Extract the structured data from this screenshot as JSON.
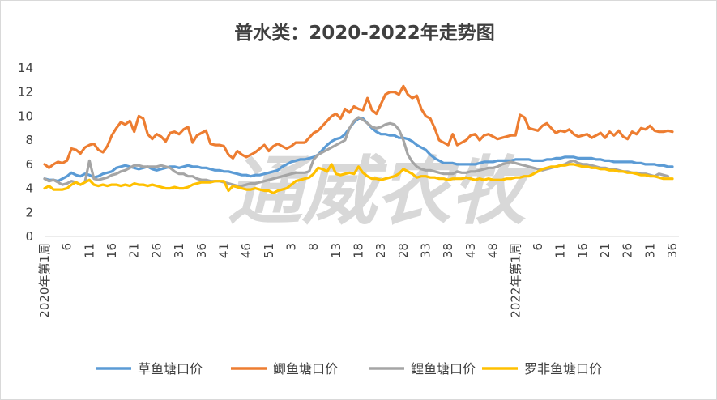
{
  "chart_data": {
    "type": "line",
    "title": "普水类：2020-2022年走势图",
    "watermark": "通威农牧",
    "xlabel": "",
    "ylabel": "",
    "ylim": [
      0,
      14
    ],
    "yticks": [
      "0",
      "2",
      "4",
      "6",
      "8",
      "10",
      "12",
      "14"
    ],
    "x_count": 141,
    "xtick_labels": [
      {
        "index": 0,
        "label": "2020年第1周"
      },
      {
        "index": 5,
        "label": "6"
      },
      {
        "index": 10,
        "label": "11"
      },
      {
        "index": 15,
        "label": "16"
      },
      {
        "index": 20,
        "label": "21"
      },
      {
        "index": 25,
        "label": "26"
      },
      {
        "index": 30,
        "label": "31"
      },
      {
        "index": 35,
        "label": "36"
      },
      {
        "index": 40,
        "label": "41"
      },
      {
        "index": 45,
        "label": "46"
      },
      {
        "index": 50,
        "label": "51"
      },
      {
        "index": 55,
        "label": "3"
      },
      {
        "index": 60,
        "label": "8"
      },
      {
        "index": 65,
        "label": "13"
      },
      {
        "index": 70,
        "label": "18"
      },
      {
        "index": 75,
        "label": "23"
      },
      {
        "index": 80,
        "label": "28"
      },
      {
        "index": 85,
        "label": "33"
      },
      {
        "index": 90,
        "label": "38"
      },
      {
        "index": 95,
        "label": "43"
      },
      {
        "index": 100,
        "label": "48"
      },
      {
        "index": 105,
        "label": "2022年第1周"
      },
      {
        "index": 110,
        "label": "6"
      },
      {
        "index": 115,
        "label": "11"
      },
      {
        "index": 120,
        "label": "16"
      },
      {
        "index": 125,
        "label": "21"
      },
      {
        "index": 130,
        "label": "26"
      },
      {
        "index": 135,
        "label": "31"
      },
      {
        "index": 140,
        "label": "36"
      }
    ],
    "legend_position": "bottom",
    "grid": false,
    "series": [
      {
        "name": "草鱼塘口价",
        "color": "#5b9bd5",
        "values": [
          4.8,
          4.7,
          4.7,
          4.6,
          4.8,
          5.0,
          5.3,
          5.1,
          5.0,
          5.2,
          5.1,
          4.9,
          5.0,
          5.2,
          5.3,
          5.4,
          5.7,
          5.8,
          5.9,
          5.8,
          5.7,
          5.6,
          5.7,
          5.8,
          5.6,
          5.5,
          5.6,
          5.7,
          5.8,
          5.8,
          5.7,
          5.8,
          5.9,
          5.8,
          5.8,
          5.7,
          5.7,
          5.6,
          5.5,
          5.5,
          5.4,
          5.4,
          5.3,
          5.2,
          5.1,
          5.1,
          5.0,
          5.1,
          5.1,
          5.2,
          5.3,
          5.4,
          5.5,
          5.8,
          6.0,
          6.2,
          6.3,
          6.4,
          6.4,
          6.5,
          6.6,
          6.8,
          7.2,
          7.6,
          7.9,
          8.1,
          8.2,
          8.5,
          9.0,
          9.5,
          9.8,
          9.8,
          9.4,
          9.0,
          8.7,
          8.5,
          8.5,
          8.4,
          8.4,
          8.2,
          8.2,
          8.1,
          7.9,
          7.6,
          7.4,
          7.2,
          6.8,
          6.5,
          6.3,
          6.1,
          6.1,
          6.1,
          6.0,
          6.0,
          6.0,
          6.0,
          6.0,
          6.1,
          6.2,
          6.2,
          6.2,
          6.3,
          6.3,
          6.3,
          6.3,
          6.4,
          6.4,
          6.4,
          6.4,
          6.3,
          6.3,
          6.3,
          6.4,
          6.4,
          6.5,
          6.5,
          6.6,
          6.6,
          6.6,
          6.5,
          6.5,
          6.5,
          6.5,
          6.4,
          6.4,
          6.3,
          6.3,
          6.2,
          6.2,
          6.2,
          6.2,
          6.2,
          6.1,
          6.1,
          6.0,
          6.0,
          6.0,
          5.9,
          5.9,
          5.8,
          5.8
        ]
      },
      {
        "name": "鲫鱼塘口价",
        "color": "#ed7d31",
        "values": [
          6.0,
          5.7,
          6.0,
          6.2,
          6.1,
          6.3,
          7.3,
          7.2,
          6.9,
          7.4,
          7.6,
          7.7,
          7.2,
          7.0,
          7.5,
          8.4,
          9.0,
          9.5,
          9.3,
          9.6,
          8.7,
          10.0,
          9.8,
          8.5,
          8.1,
          8.5,
          8.3,
          7.9,
          8.6,
          8.7,
          8.5,
          8.9,
          9.1,
          7.8,
          8.4,
          8.6,
          8.8,
          7.7,
          7.6,
          7.6,
          7.5,
          6.8,
          6.5,
          7.1,
          6.8,
          6.6,
          6.8,
          7.0,
          7.3,
          7.6,
          7.1,
          7.5,
          7.7,
          7.5,
          7.3,
          7.5,
          7.8,
          7.8,
          7.8,
          8.2,
          8.6,
          8.8,
          9.2,
          9.6,
          10.0,
          10.2,
          9.8,
          10.6,
          10.3,
          10.8,
          10.6,
          10.5,
          11.5,
          10.5,
          10.2,
          11.0,
          11.8,
          12.0,
          12.0,
          11.8,
          12.5,
          11.8,
          11.5,
          11.7,
          10.6,
          10.0,
          9.8,
          9.0,
          8.0,
          7.8,
          7.6,
          8.5,
          7.6,
          7.8,
          8.0,
          8.4,
          8.5,
          8.0,
          8.4,
          8.5,
          8.3,
          8.1,
          8.2,
          8.3,
          8.4,
          8.4,
          10.1,
          9.9,
          9.0,
          8.9,
          8.8,
          9.2,
          9.4,
          9.0,
          8.6,
          8.8,
          8.7,
          8.9,
          8.5,
          8.3,
          8.4,
          8.5,
          8.2,
          8.4,
          8.6,
          8.2,
          8.7,
          8.4,
          8.8,
          8.3,
          8.1,
          8.7,
          8.5,
          9.0,
          8.9,
          9.2,
          8.8,
          8.7,
          8.7,
          8.8,
          8.7
        ]
      },
      {
        "name": "鲤鱼塘口价",
        "color": "#a5a5a5",
        "values": [
          4.8,
          4.6,
          4.7,
          4.5,
          4.3,
          4.4,
          4.6,
          4.5,
          4.3,
          4.5,
          6.3,
          4.8,
          4.7,
          4.8,
          4.9,
          5.1,
          5.2,
          5.4,
          5.5,
          5.7,
          5.9,
          5.9,
          5.8,
          5.8,
          5.8,
          5.8,
          5.9,
          5.8,
          5.7,
          5.4,
          5.2,
          5.2,
          5.0,
          5.0,
          4.8,
          4.7,
          4.7,
          4.6,
          4.6,
          4.6,
          4.5,
          4.4,
          4.3,
          4.2,
          4.2,
          4.3,
          4.4,
          4.4,
          4.5,
          4.6,
          4.7,
          4.8,
          4.9,
          5.0,
          5.1,
          5.2,
          5.3,
          5.3,
          5.3,
          5.4,
          6.4,
          6.8,
          7.0,
          7.2,
          7.4,
          7.6,
          7.8,
          8.0,
          9.0,
          9.6,
          9.9,
          9.7,
          9.4,
          9.1,
          9.0,
          9.1,
          9.3,
          9.4,
          9.3,
          8.9,
          8.0,
          6.8,
          6.2,
          5.8,
          5.6,
          5.5,
          5.5,
          5.4,
          5.3,
          5.2,
          5.2,
          5.2,
          5.4,
          5.3,
          5.3,
          5.4,
          5.4,
          5.5,
          5.6,
          5.7,
          5.7,
          5.8,
          6.0,
          6.1,
          6.2,
          6.1,
          6.0,
          5.9,
          5.8,
          5.7,
          5.6,
          5.5,
          5.6,
          5.7,
          5.8,
          5.9,
          6.0,
          6.2,
          6.3,
          6.1,
          6.0,
          6.0,
          5.9,
          5.8,
          5.7,
          5.7,
          5.6,
          5.6,
          5.5,
          5.4,
          5.4,
          5.3,
          5.3,
          5.2,
          5.2,
          5.1,
          5.0,
          5.2,
          5.1,
          5.0
        ]
      },
      {
        "name": "罗非鱼塘口价",
        "color": "#ffc000",
        "values": [
          4.0,
          4.2,
          3.9,
          3.9,
          3.9,
          4.0,
          4.3,
          4.5,
          4.3,
          4.5,
          4.7,
          4.3,
          4.2,
          4.3,
          4.2,
          4.3,
          4.3,
          4.2,
          4.3,
          4.2,
          4.4,
          4.3,
          4.3,
          4.2,
          4.3,
          4.2,
          4.1,
          4.0,
          4.0,
          4.1,
          4.0,
          4.0,
          4.1,
          4.3,
          4.4,
          4.5,
          4.5,
          4.5,
          4.6,
          4.6,
          4.6,
          3.8,
          4.2,
          4.1,
          4.0,
          3.9,
          3.9,
          4.0,
          3.9,
          3.8,
          3.8,
          3.6,
          3.8,
          3.9,
          4.0,
          4.3,
          4.6,
          4.7,
          4.8,
          4.9,
          5.2,
          5.7,
          5.6,
          5.4,
          6.0,
          5.2,
          5.1,
          5.2,
          5.3,
          5.2,
          5.8,
          5.3,
          5.0,
          4.8,
          4.8,
          4.7,
          4.8,
          4.9,
          5.0,
          5.2,
          5.6,
          5.4,
          5.2,
          4.9,
          5.0,
          5.0,
          4.9,
          4.9,
          4.8,
          4.8,
          4.7,
          4.8,
          4.8,
          4.8,
          4.9,
          4.8,
          4.7,
          4.8,
          4.7,
          4.8,
          4.7,
          4.7,
          4.7,
          4.8,
          4.8,
          4.9,
          4.9,
          5.0,
          5.0,
          5.2,
          5.4,
          5.6,
          5.7,
          5.8,
          5.8,
          5.9,
          5.9,
          6.0,
          6.0,
          5.9,
          5.8,
          5.8,
          5.7,
          5.7,
          5.6,
          5.6,
          5.5,
          5.5,
          5.4,
          5.4,
          5.3,
          5.3,
          5.2,
          5.1,
          5.1,
          5.0,
          5.0,
          4.9,
          4.8,
          4.8,
          4.8
        ]
      }
    ]
  }
}
